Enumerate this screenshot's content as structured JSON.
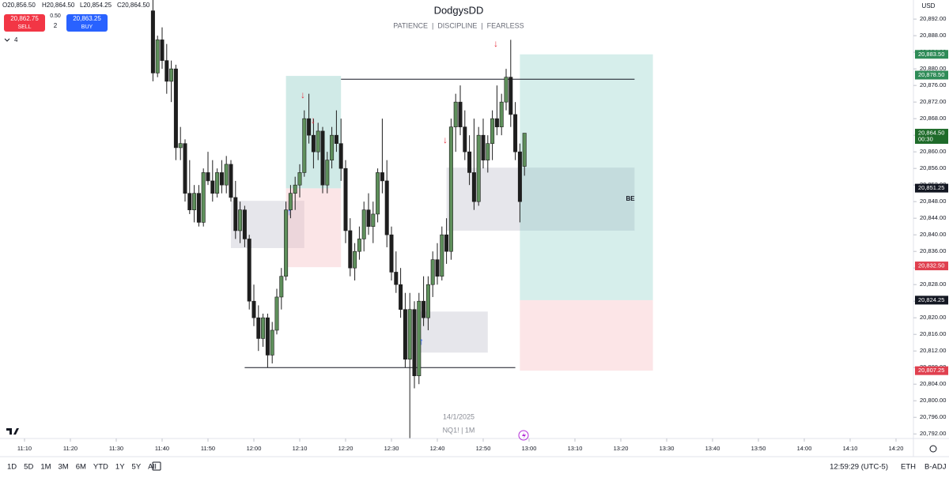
{
  "chart_data": {
    "type": "candlestick",
    "title": "DodgysDD",
    "subtitle": "PATIENCE  |  DISCIPLINE  |  FEARLESS",
    "watermark": [
      "14/1/2025",
      "NQ1! | 1M"
    ],
    "currency": "USD",
    "x": [
      "11:38",
      "11:39",
      "11:40",
      "11:41",
      "11:42",
      "11:43",
      "11:44",
      "11:45",
      "11:46",
      "11:47",
      "11:48",
      "11:49",
      "11:50",
      "11:51",
      "11:52",
      "11:53",
      "11:54",
      "11:55",
      "11:56",
      "11:57",
      "11:58",
      "11:59",
      "12:00",
      "12:01",
      "12:02",
      "12:03",
      "12:04",
      "12:05",
      "12:06",
      "12:07",
      "12:08",
      "12:09",
      "12:10",
      "12:11",
      "12:12",
      "12:13",
      "12:14",
      "12:15",
      "12:16",
      "12:17",
      "12:18",
      "12:19",
      "12:20",
      "12:21",
      "12:22",
      "12:23",
      "12:24",
      "12:25",
      "12:26",
      "12:27",
      "12:28",
      "12:29",
      "12:30",
      "12:31",
      "12:32",
      "12:33",
      "12:34",
      "12:35",
      "12:36",
      "12:37",
      "12:38",
      "12:39",
      "12:40",
      "12:41",
      "12:42",
      "12:43",
      "12:44",
      "12:45",
      "12:46",
      "12:47",
      "12:48",
      "12:49",
      "12:50",
      "12:51",
      "12:52",
      "12:53",
      "12:54",
      "12:55",
      "12:56",
      "12:57",
      "12:58",
      "12:59"
    ],
    "open": [
      20894,
      20879,
      20887,
      20882,
      20877,
      20880,
      20861,
      20862,
      20850,
      20846,
      20850,
      20843,
      20855,
      20853,
      20850,
      20855,
      20852,
      20857,
      20849,
      20841,
      20846,
      20839,
      20824,
      20820,
      20815,
      20820,
      20811,
      20817,
      20825,
      20830,
      20846,
      20850,
      20852,
      20855,
      20868,
      20864,
      20860,
      20865,
      20852,
      20858,
      20864,
      20862,
      20856,
      20841,
      20832,
      20836,
      20839,
      20846,
      20842,
      20845,
      20855,
      20853,
      20840,
      20831,
      20828,
      20822,
      20810,
      20822,
      20806,
      20824,
      20820,
      20828,
      20834,
      20830,
      20840,
      20836,
      20866,
      20872,
      20866,
      20860,
      20855,
      20848,
      20864,
      20858,
      20862,
      20868,
      20866,
      20872,
      20878,
      20869,
      20860,
      20856.5
    ],
    "high": [
      20897,
      20888,
      20890,
      20886,
      20882,
      20881,
      20866,
      20863,
      20858,
      20852,
      20852,
      20856,
      20860,
      20858,
      20856,
      20858,
      20859,
      20858,
      20853,
      20848,
      20847,
      20840,
      20828,
      20823,
      20821,
      20821,
      20819,
      20827,
      20832,
      20848,
      20852,
      20854,
      20857,
      20870,
      20874,
      20868,
      20867,
      20866,
      20860,
      20866,
      20870,
      20868,
      20858,
      20844,
      20838,
      20842,
      20848,
      20850,
      20848,
      20856,
      20868,
      20858,
      20842,
      20836,
      20832,
      20826,
      20826,
      20824,
      20826,
      20830,
      20830,
      20836,
      20838,
      20842,
      20844,
      20868,
      20874,
      20876,
      20870,
      20864,
      20868,
      20866,
      20868,
      20864,
      20870,
      20876,
      20874,
      20880,
      20887,
      20872,
      20862,
      20864.5
    ],
    "low": [
      20877,
      20878,
      20880,
      20874,
      20872,
      20858,
      20858,
      20848,
      20845,
      20843,
      20842,
      20842,
      20852,
      20848,
      20849,
      20850,
      20850,
      20848,
      20839,
      20838,
      20837,
      20822,
      20818,
      20812,
      20813,
      20808,
      20809,
      20816,
      20822,
      20829,
      20844,
      20846,
      20849,
      20854,
      20862,
      20856,
      20858,
      20850,
      20850,
      20856,
      20860,
      20853,
      20838,
      20830,
      20829,
      20834,
      20836,
      20840,
      20838,
      20843,
      20850,
      20837,
      20829,
      20826,
      20820,
      20808,
      20791,
      20803,
      20804,
      20818,
      20817,
      20825,
      20828,
      20829,
      20833,
      20834,
      20860,
      20864,
      20858,
      20852,
      20846,
      20847,
      20856,
      20855,
      20858,
      20864,
      20864,
      20870,
      20866,
      20858,
      20843,
      20854.25
    ],
    "close": [
      20879,
      20887,
      20882,
      20877,
      20880,
      20861,
      20862,
      20850,
      20846,
      20850,
      20843,
      20855,
      20853,
      20850,
      20855,
      20852,
      20857,
      20849,
      20841,
      20846,
      20839,
      20824,
      20820,
      20815,
      20820,
      20811,
      20817,
      20825,
      20830,
      20846,
      20850,
      20852,
      20855,
      20868,
      20864,
      20860,
      20865,
      20852,
      20858,
      20864,
      20862,
      20856,
      20841,
      20832,
      20836,
      20839,
      20846,
      20842,
      20845,
      20855,
      20853,
      20840,
      20831,
      20828,
      20822,
      20810,
      20822,
      20806,
      20824,
      20820,
      20828,
      20834,
      20830,
      20840,
      20836,
      20866,
      20872,
      20866,
      20860,
      20855,
      20848,
      20864,
      20858,
      20862,
      20868,
      20866,
      20872,
      20878,
      20869,
      20860,
      20848,
      20864.5
    ],
    "up_color": "#5e8f5b",
    "down_color": "#1e1e1e",
    "ylim": [
      20790.9,
      20896.6
    ],
    "yticks": [
      {
        "value": 20892,
        "label": "20,892.00"
      },
      {
        "value": 20888,
        "label": "20,888.00"
      },
      {
        "value": 20884,
        "label": "20,884.00"
      },
      {
        "value": 20880,
        "label": "20,880.00"
      },
      {
        "value": 20876,
        "label": "20,876.00"
      },
      {
        "value": 20872,
        "label": "20,872.00"
      },
      {
        "value": 20868,
        "label": "20,868.00"
      },
      {
        "value": 20864,
        "label": "20,864.00"
      },
      {
        "value": 20860,
        "label": "20,860.00"
      },
      {
        "value": 20856,
        "label": "20,856.00"
      },
      {
        "value": 20852,
        "label": "20,852.00"
      },
      {
        "value": 20848,
        "label": "20,848.00"
      },
      {
        "value": 20844,
        "label": "20,844.00"
      },
      {
        "value": 20840,
        "label": "20,840.00"
      },
      {
        "value": 20836,
        "label": "20,836.00"
      },
      {
        "value": 20832,
        "label": "20,832.00"
      },
      {
        "value": 20828,
        "label": "20,828.00"
      },
      {
        "value": 20824,
        "label": "20,824.00"
      },
      {
        "value": 20820,
        "label": "20,820.00"
      },
      {
        "value": 20816,
        "label": "20,816.00"
      },
      {
        "value": 20812,
        "label": "20,812.00"
      },
      {
        "value": 20808,
        "label": "20,808.00"
      },
      {
        "value": 20804,
        "label": "20,804.00"
      },
      {
        "value": 20800,
        "label": "20,800.00"
      },
      {
        "value": 20796,
        "label": "20,796.00"
      },
      {
        "value": 20792,
        "label": "20,792.00"
      }
    ],
    "xticks": [
      "11:10",
      "11:20",
      "11:30",
      "11:40",
      "11:50",
      "12:00",
      "12:10",
      "12:20",
      "12:30",
      "12:40",
      "12:50",
      "13:00",
      "13:10",
      "13:20",
      "13:30",
      "13:40",
      "13:50",
      "14:00",
      "14:10",
      "14:20"
    ],
    "zones": [
      {
        "x": [
          "11:55",
          "12:11"
        ],
        "top": 20848.2,
        "bottom": 20836.8,
        "color": "rgba(200,200,210,0.45)"
      },
      {
        "x": [
          "12:07",
          "12:19"
        ],
        "top": 20878.3,
        "bottom": 20851.2,
        "color": "rgba(120,195,185,0.35)"
      },
      {
        "x": [
          "12:07",
          "12:19"
        ],
        "top": 20851.2,
        "bottom": 20832.2,
        "color": "rgba(245,190,195,0.4)"
      },
      {
        "x": [
          "12:42",
          "13:23"
        ],
        "top": 20856.2,
        "bottom": 20841,
        "color": "rgba(200,200,210,0.45)"
      },
      {
        "x": [
          "12:36",
          "12:51"
        ],
        "top": 20821.5,
        "bottom": 20811.6,
        "color": "rgba(200,200,210,0.45)"
      },
      {
        "x": [
          "12:58",
          "13:27"
        ],
        "top": 20883.5,
        "bottom": 20824.25,
        "color": "rgba(120,200,190,0.3)"
      },
      {
        "x": [
          "12:58",
          "13:27"
        ],
        "top": 20824.25,
        "bottom": 20807.25,
        "color": "rgba(245,180,185,0.35)"
      }
    ],
    "hlines": [
      {
        "x": [
          "12:19",
          "13:23"
        ],
        "value": 20877.5
      },
      {
        "x": [
          "11:58",
          "12:57"
        ],
        "value": 20808
      }
    ],
    "zone_label": "BE",
    "price_labels": [
      {
        "value": 20883.5,
        "label": "20,883.50",
        "color": "#2e8b57"
      },
      {
        "value": 20878.5,
        "label": "20,878.50",
        "color": "#2e8b57"
      },
      {
        "value": 20864.5,
        "label": "20,864.50",
        "countdown": "00:30",
        "color": "#1f6b2a"
      },
      {
        "value": 20851.25,
        "label": "20,851.25",
        "color": "#131722"
      },
      {
        "value": 20832.5,
        "label": "20,832.50",
        "color": "#e0404f"
      },
      {
        "value": 20824.25,
        "label": "20,824.25",
        "color": "#131722"
      },
      {
        "value": 20807.25,
        "label": "20,807.25",
        "color": "#e0404f"
      }
    ]
  },
  "header": {
    "ohlc": [
      "O20,856.50",
      "H20,864.50",
      "L20,854.25",
      "C20,864.50"
    ],
    "sell_price": "20,862.75",
    "sell_label": "SELL",
    "spread": "0.50",
    "quantity": "2",
    "buy_price": "20,863.25",
    "buy_label": "BUY",
    "indicators": "4"
  },
  "toolbar": {
    "ranges": [
      "1D",
      "5D",
      "1M",
      "3M",
      "6M",
      "YTD",
      "1Y",
      "5Y",
      "All"
    ],
    "clock": "12:59:29 (UTC-5)",
    "session": "ETH",
    "adjust": "B-ADJ"
  }
}
